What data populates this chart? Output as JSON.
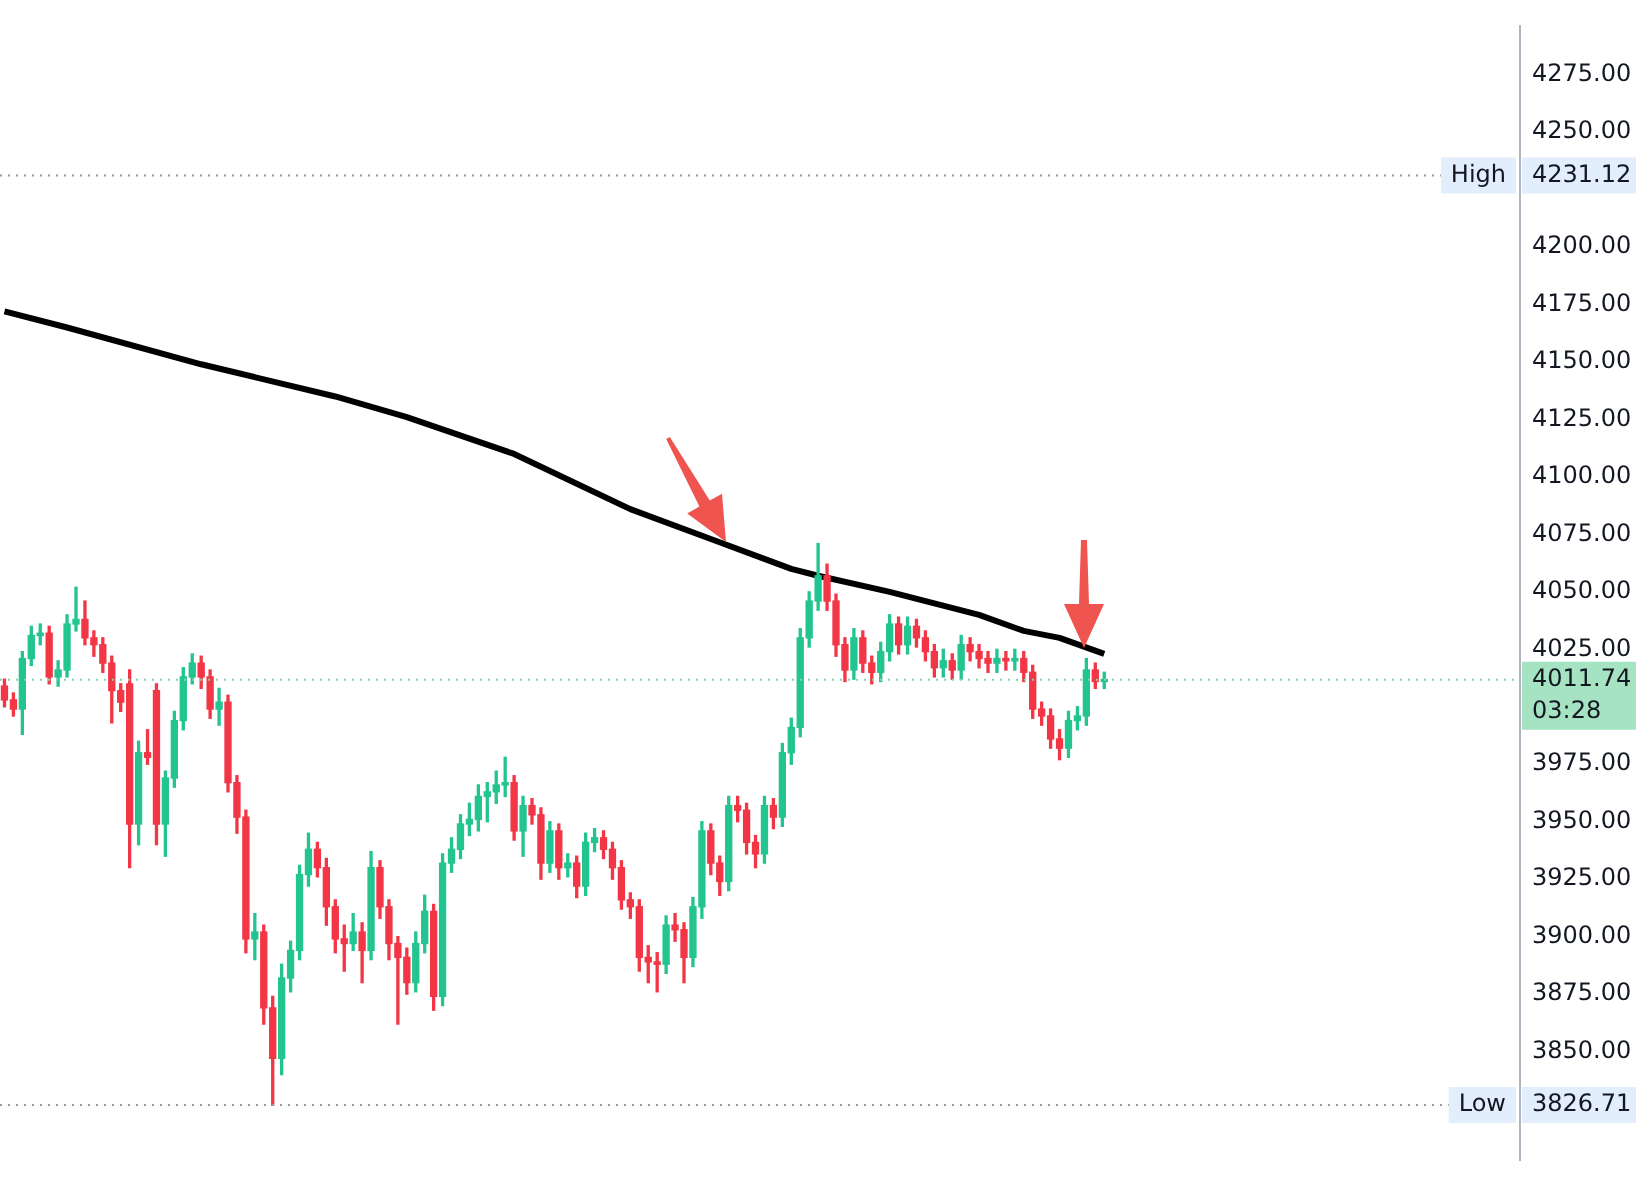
{
  "chart_data": {
    "type": "candlestick",
    "categories": [
      null,
      null,
      null,
      null,
      null,
      null,
      null,
      null,
      null,
      null,
      null,
      null,
      null,
      null,
      null,
      null,
      null,
      null,
      null,
      null,
      null,
      null,
      null,
      null,
      null,
      null,
      null,
      null,
      null,
      null,
      null,
      null,
      null,
      null,
      null,
      null,
      null,
      null,
      null,
      null,
      null,
      null,
      null,
      null,
      null,
      null,
      null,
      null,
      null,
      null,
      null,
      null,
      null,
      null,
      null,
      null,
      null,
      null,
      null,
      null,
      null,
      null,
      null,
      null,
      null,
      null,
      null,
      null,
      null,
      null,
      null,
      null,
      null,
      null,
      null,
      null,
      null,
      null,
      null,
      null,
      null,
      null,
      null,
      null,
      null,
      null,
      null,
      null,
      null,
      null,
      null,
      null,
      null,
      null,
      null,
      null,
      null,
      null,
      null,
      null,
      null,
      null,
      null,
      null,
      null,
      null,
      null,
      null,
      null,
      null,
      null,
      null,
      null,
      null,
      null,
      null,
      null,
      null,
      null,
      null,
      null,
      null,
      null,
      null,
      null,
      null,
      null,
      null,
      null,
      null,
      null,
      null,
      null,
      null,
      null,
      null,
      null,
      null,
      null,
      null,
      null,
      null,
      null,
      null,
      null,
      null,
      null,
      null,
      null,
      null,
      null,
      null,
      null,
      null,
      null,
      null,
      null,
      null,
      null,
      null,
      null,
      null,
      null,
      null,
      null,
      null,
      null,
      null,
      null,
      null
    ],
    "ohlc": [
      [
        4009,
        4012,
        4000,
        4003
      ],
      [
        4003,
        4006,
        3996,
        3999
      ],
      [
        3999,
        4024,
        3988,
        4021
      ],
      [
        4021,
        4035,
        4018,
        4031
      ],
      [
        4031,
        4036,
        4027,
        4032
      ],
      [
        4032,
        4035,
        4010,
        4013
      ],
      [
        4013,
        4020,
        4009,
        4016
      ],
      [
        4016,
        4040,
        4013,
        4036
      ],
      [
        4036,
        4052,
        4033,
        4038
      ],
      [
        4038,
        4046,
        4027,
        4030
      ],
      [
        4030,
        4033,
        4022,
        4027
      ],
      [
        4027,
        4030,
        4015,
        4019
      ],
      [
        4019,
        4022,
        3993,
        4007
      ],
      [
        4007,
        4010,
        3998,
        4002
      ],
      [
        4010,
        4016,
        3930,
        3949
      ],
      [
        3949,
        3985,
        3940,
        3980
      ],
      [
        3980,
        3990,
        3975,
        3978
      ],
      [
        4007,
        4010,
        3940,
        3949
      ],
      [
        3949,
        3972,
        3935,
        3969
      ],
      [
        3969,
        3998,
        3965,
        3994
      ],
      [
        3994,
        4017,
        3990,
        4013
      ],
      [
        4013,
        4023,
        4010,
        4019
      ],
      [
        4019,
        4022,
        4008,
        4013
      ],
      [
        4013,
        4016,
        3995,
        3999
      ],
      [
        3999,
        4008,
        3992,
        4002
      ],
      [
        4002,
        4005,
        3963,
        3967
      ],
      [
        3967,
        3970,
        3945,
        3952
      ],
      [
        3952,
        3955,
        3893,
        3899
      ],
      [
        3899,
        3910,
        3890,
        3902
      ],
      [
        3902,
        3905,
        3862,
        3869
      ],
      [
        3869,
        3874,
        3826.71,
        3847
      ],
      [
        3847,
        3888,
        3840,
        3882
      ],
      [
        3882,
        3898,
        3876,
        3894
      ],
      [
        3894,
        3931,
        3890,
        3927
      ],
      [
        3927,
        3945,
        3922,
        3938
      ],
      [
        3938,
        3941,
        3926,
        3930
      ],
      [
        3930,
        3934,
        3905,
        3913
      ],
      [
        3913,
        3916,
        3893,
        3899
      ],
      [
        3899,
        3905,
        3885,
        3897
      ],
      [
        3897,
        3910,
        3894,
        3902
      ],
      [
        3902,
        3906,
        3880,
        3894
      ],
      [
        3894,
        3937,
        3890,
        3930
      ],
      [
        3930,
        3933,
        3908,
        3913
      ],
      [
        3913,
        3916,
        3890,
        3897
      ],
      [
        3897,
        3900,
        3862,
        3891
      ],
      [
        3891,
        3895,
        3875,
        3880
      ],
      [
        3880,
        3902,
        3876,
        3897
      ],
      [
        3897,
        3918,
        3893,
        3911
      ],
      [
        3911,
        3914,
        3868,
        3874
      ],
      [
        3874,
        3936,
        3870,
        3932
      ],
      [
        3932,
        3943,
        3928,
        3938
      ],
      [
        3938,
        3953,
        3934,
        3949
      ],
      [
        3949,
        3958,
        3944,
        3951
      ],
      [
        3951,
        3966,
        3946,
        3961
      ],
      [
        3961,
        3967,
        3950,
        3963
      ],
      [
        3963,
        3972,
        3958,
        3966
      ],
      [
        3966,
        3978,
        3961,
        3967
      ],
      [
        3967,
        3970,
        3942,
        3946
      ],
      [
        3946,
        3961,
        3935,
        3957
      ],
      [
        3957,
        3960,
        3949,
        3953
      ],
      [
        3953,
        3956,
        3925,
        3932
      ],
      [
        3932,
        3950,
        3928,
        3946
      ],
      [
        3946,
        3949,
        3925,
        3930
      ],
      [
        3930,
        3936,
        3926,
        3932
      ],
      [
        3932,
        3935,
        3917,
        3922
      ],
      [
        3922,
        3945,
        3918,
        3941
      ],
      [
        3941,
        3947,
        3937,
        3943
      ],
      [
        3943,
        3946,
        3934,
        3938
      ],
      [
        3938,
        3941,
        3925,
        3930
      ],
      [
        3930,
        3933,
        3912,
        3916
      ],
      [
        3916,
        3919,
        3908,
        3913
      ],
      [
        3913,
        3916,
        3885,
        3891
      ],
      [
        3891,
        3896,
        3880,
        3889
      ],
      [
        3889,
        3893,
        3876,
        3888
      ],
      [
        3888,
        3909,
        3884,
        3905
      ],
      [
        3905,
        3910,
        3898,
        3903
      ],
      [
        3903,
        3906,
        3880,
        3891
      ],
      [
        3891,
        3917,
        3887,
        3913
      ],
      [
        3913,
        3950,
        3908,
        3946
      ],
      [
        3946,
        3949,
        3927,
        3932
      ],
      [
        3932,
        3935,
        3918,
        3924
      ],
      [
        3924,
        3961,
        3920,
        3957
      ],
      [
        3957,
        3961,
        3950,
        3955
      ],
      [
        3955,
        3958,
        3936,
        3941
      ],
      [
        3941,
        3944,
        3930,
        3936
      ],
      [
        3936,
        3961,
        3932,
        3957
      ],
      [
        3957,
        3960,
        3947,
        3952
      ],
      [
        3952,
        3984,
        3948,
        3980
      ],
      [
        3980,
        3995,
        3975,
        3991
      ],
      [
        3991,
        4034,
        3987,
        4030
      ],
      [
        4030,
        4050,
        4026,
        4046
      ],
      [
        4046,
        4071,
        4042,
        4057
      ],
      [
        4057,
        4062,
        4042,
        4046
      ],
      [
        4046,
        4049,
        4022,
        4027
      ],
      [
        4027,
        4030,
        4011,
        4016
      ],
      [
        4016,
        4034,
        4012,
        4030
      ],
      [
        4030,
        4033,
        4015,
        4019
      ],
      [
        4019,
        4022,
        4010,
        4015
      ],
      [
        4015,
        4028,
        4011,
        4024
      ],
      [
        4024,
        4040,
        4020,
        4036
      ],
      [
        4036,
        4039,
        4023,
        4027
      ],
      [
        4027,
        4039,
        4023,
        4035
      ],
      [
        4035,
        4038,
        4026,
        4030
      ],
      [
        4030,
        4033,
        4020,
        4024
      ],
      [
        4024,
        4027,
        4013,
        4017
      ],
      [
        4017,
        4025,
        4013,
        4020
      ],
      [
        4020,
        4023,
        4012,
        4016
      ],
      [
        4016,
        4031,
        4012,
        4027
      ],
      [
        4027,
        4030,
        4020,
        4024
      ],
      [
        4024,
        4027,
        4017,
        4021
      ],
      [
        4021,
        4024,
        4015,
        4019
      ],
      [
        4019,
        4025,
        4015,
        4021
      ],
      [
        4021,
        4024,
        4016,
        4020
      ],
      [
        4020,
        4025,
        4016,
        4021
      ],
      [
        4021,
        4024,
        4011,
        4015
      ],
      [
        4015,
        4018,
        3995,
        3999
      ],
      [
        3999,
        4002,
        3992,
        3996
      ],
      [
        3996,
        3999,
        3982,
        3986
      ],
      [
        3986,
        3990,
        3977,
        3982
      ],
      [
        3982,
        3998,
        3978,
        3994
      ],
      [
        3994,
        4000,
        3990,
        3996
      ],
      [
        3996,
        4021,
        3992,
        4016
      ],
      [
        4016,
        4019,
        4008,
        4011
      ],
      [
        4011,
        4015,
        4008,
        4011.74
      ],
      null,
      null,
      null,
      null,
      null,
      null,
      null,
      null,
      null,
      null,
      null,
      null,
      null,
      null,
      null,
      null,
      null,
      null,
      null,
      null,
      null,
      null,
      null,
      null,
      null,
      null,
      null,
      null,
      null,
      null,
      null,
      null,
      null,
      null,
      null,
      null,
      null,
      null,
      null,
      null,
      null,
      null,
      null,
      null,
      null,
      null
    ],
    "series": [
      {
        "type": "line",
        "color": "#000000",
        "values": [
          4172,
          null,
          null,
          null,
          null,
          null,
          null,
          4165,
          null,
          null,
          null,
          null,
          null,
          null,
          null,
          null,
          null,
          null,
          null,
          null,
          null,
          null,
          4149,
          null,
          null,
          null,
          null,
          null,
          null,
          null,
          null,
          null,
          null,
          null,
          null,
          null,
          null,
          4135,
          null,
          null,
          null,
          null,
          null,
          null,
          null,
          4126,
          null,
          null,
          null,
          null,
          null,
          null,
          null,
          null,
          null,
          null,
          null,
          4110,
          null,
          null,
          null,
          null,
          null,
          null,
          null,
          null,
          null,
          null,
          null,
          null,
          4086,
          null,
          null,
          null,
          null,
          null,
          null,
          null,
          null,
          4073,
          null,
          null,
          null,
          null,
          null,
          null,
          null,
          null,
          4060,
          null,
          null,
          4057,
          null,
          null,
          null,
          null,
          null,
          null,
          null,
          4050,
          null,
          null,
          null,
          null,
          null,
          null,
          null,
          null,
          null,
          4040,
          null,
          null,
          null,
          null,
          4033,
          null,
          null,
          null,
          4030,
          null,
          null,
          null,
          null,
          4023,
          null,
          null,
          null,
          null,
          null,
          null,
          null,
          null,
          null,
          null,
          null,
          null,
          null,
          null,
          null,
          null,
          null,
          null,
          null,
          null,
          null,
          null,
          null,
          null,
          null,
          null,
          null,
          null,
          null,
          null,
          null,
          null,
          null,
          null,
          null,
          null,
          null,
          null,
          null,
          null,
          null,
          null,
          null,
          null,
          null,
          null
        ]
      }
    ],
    "ylim": [
      3803,
      4296
    ],
    "yticks": [
      {
        "value": 3850,
        "label": "3850.00"
      },
      {
        "value": 3875,
        "label": "3875.00"
      },
      {
        "value": 3900,
        "label": "3900.00"
      },
      {
        "value": 3925,
        "label": "3925.00"
      },
      {
        "value": 3950,
        "label": "3950.00"
      },
      {
        "value": 3975,
        "label": "3975.00"
      },
      {
        "value": 4025,
        "label": "4025.00"
      },
      {
        "value": 4050,
        "label": "4050.00"
      },
      {
        "value": 4075,
        "label": "4075.00"
      },
      {
        "value": 4100,
        "label": "4100.00"
      },
      {
        "value": 4125,
        "label": "4125.00"
      },
      {
        "value": 4150,
        "label": "4150.00"
      },
      {
        "value": 4175,
        "label": "4175.00"
      },
      {
        "value": 4200,
        "label": "4200.00"
      },
      {
        "value": 4250,
        "label": "4250.00"
      },
      {
        "value": 4275,
        "label": "4275.00"
      }
    ],
    "tick_labels": "y",
    "ref_lines": [
      {
        "axis": "y",
        "value": 4231.12,
        "label": "High",
        "color": "#9598a1",
        "line_style": "dotted"
      },
      {
        "axis": "y",
        "value": 3826.71,
        "label": "Low",
        "color": "#9598a1",
        "line_style": "dotted"
      },
      {
        "axis": "y",
        "value": 4011.74,
        "label": null,
        "color": "#7fd6a8",
        "line_style": "dotted"
      }
    ],
    "annotations": [
      "4231.12",
      "3826.71",
      "4011.74",
      "03:28"
    ]
  }
}
